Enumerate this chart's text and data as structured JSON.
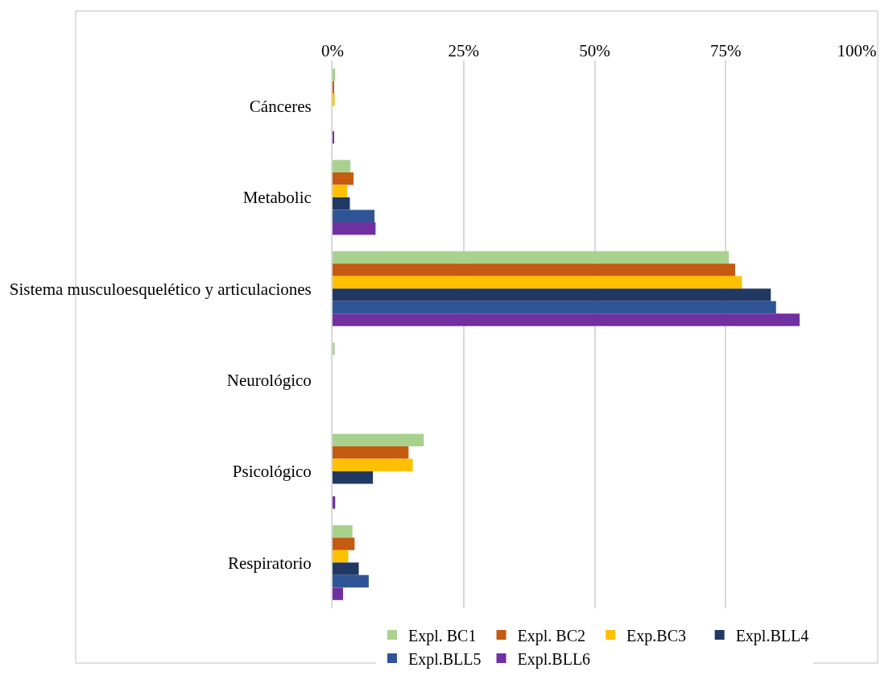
{
  "chart_data": {
    "type": "bar",
    "orientation": "horizontal",
    "categories": [
      "Cánceres",
      "Metabolic",
      "Sistema musculoesquelético y articulaciones",
      "Neurológico",
      "Psicológico",
      "Respiratorio"
    ],
    "series": [
      {
        "name": "Expl. BC1",
        "color": "#a9d18e",
        "values": [
          0.5,
          3.4,
          75.6,
          0.4,
          17.4,
          3.8
        ]
      },
      {
        "name": "Expl. BC2",
        "color": "#c55a11",
        "values": [
          0.2,
          4.0,
          76.8,
          0,
          14.5,
          4.2
        ]
      },
      {
        "name": "Exp.BC3",
        "color": "#ffc000",
        "values": [
          0.4,
          2.8,
          78.1,
          0,
          15.3,
          3.0
        ]
      },
      {
        "name": "Expl.BLL4",
        "color": "#203864",
        "values": [
          0,
          3.3,
          83.6,
          0,
          7.7,
          5.0
        ]
      },
      {
        "name": "Expl.BLL5",
        "color": "#2f5597",
        "values": [
          0,
          8.0,
          84.6,
          0,
          0,
          6.9
        ]
      },
      {
        "name": "Expl.BLL6",
        "color": "#7030a0",
        "values": [
          0.3,
          8.2,
          89.1,
          0,
          0.5,
          2.0
        ]
      }
    ],
    "xlim": [
      0,
      100
    ],
    "xticks": [
      {
        "value": 0,
        "label": "0%"
      },
      {
        "value": 25,
        "label": "25%"
      },
      {
        "value": 50,
        "label": "50%"
      },
      {
        "value": 75,
        "label": "75%"
      },
      {
        "value": 100,
        "label": "100%"
      }
    ],
    "grid": "x",
    "legend": "bottom"
  }
}
